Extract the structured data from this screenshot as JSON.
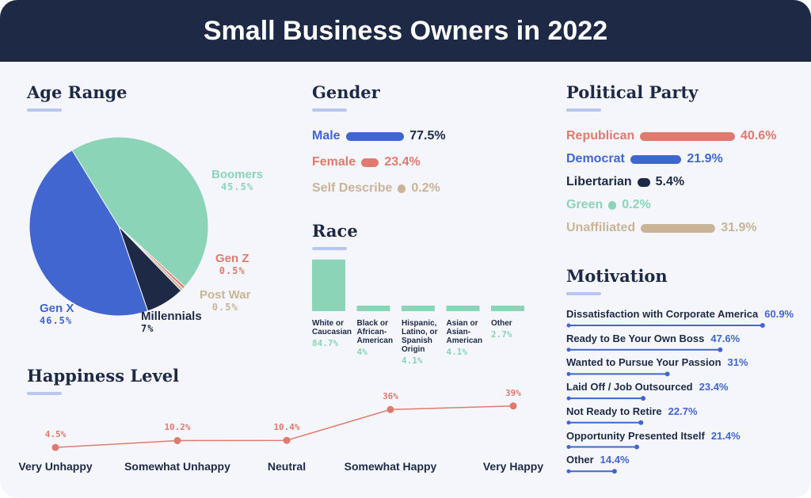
{
  "title": "Small Business Owners in 2022",
  "colors": {
    "navy": "#1e2a45",
    "blue": "#4266d0",
    "red": "#e07a6e",
    "green": "#8bd4b8",
    "tan": "#c9b498"
  },
  "chart_data": [
    {
      "type": "pie",
      "title": "Age Range",
      "slices": [
        {
          "label": "Boomers",
          "value": 45.5,
          "display": "45.5%",
          "color": "#8bd4b8"
        },
        {
          "label": "Gen Z",
          "value": 0.5,
          "display": "0.5%",
          "color": "#e07a6e"
        },
        {
          "label": "Post War",
          "value": 0.5,
          "display": "0.5%",
          "color": "#c9b498"
        },
        {
          "label": "Millennials",
          "value": 7,
          "display": "7%",
          "color": "#1e2a45"
        },
        {
          "label": "Gen X",
          "value": 46.5,
          "display": "46.5%",
          "color": "#4266d0"
        }
      ]
    },
    {
      "type": "bar",
      "title": "Gender",
      "orientation": "horizontal",
      "items": [
        {
          "label": "Male",
          "value": 77.5,
          "display": "77.5%",
          "color": "#4266d0"
        },
        {
          "label": "Female",
          "value": 23.4,
          "display": "23.4%",
          "color": "#e07a6e"
        },
        {
          "label": "Self Describe",
          "value": 0.2,
          "display": "0.2%",
          "color": "#c9b498"
        }
      ]
    },
    {
      "type": "bar",
      "title": "Race",
      "items": [
        {
          "label": "White or Caucasian",
          "value": 84.7,
          "display": "84.7%"
        },
        {
          "label": "Black or African-American",
          "value": 4,
          "display": "4%"
        },
        {
          "label": "Hispanic, Latino, or Spanish Origin",
          "value": 4.1,
          "display": "4.1%"
        },
        {
          "label": "Asian or Asian-American",
          "value": 4.1,
          "display": "4.1%"
        },
        {
          "label": "Other",
          "value": 2.7,
          "display": "2.7%"
        }
      ]
    },
    {
      "type": "bar",
      "title": "Political Party",
      "orientation": "horizontal",
      "items": [
        {
          "label": "Republican",
          "value": 40.6,
          "display": "40.6%",
          "color": "#e07a6e"
        },
        {
          "label": "Democrat",
          "value": 21.9,
          "display": "21.9%",
          "color": "#4266d0"
        },
        {
          "label": "Libertarian",
          "value": 5.4,
          "display": "5.4%",
          "color": "#1e2a45"
        },
        {
          "label": "Green",
          "value": 0.2,
          "display": "0.2%",
          "color": "#8bd4b8"
        },
        {
          "label": "Unaffiliated",
          "value": 31.9,
          "display": "31.9%",
          "color": "#c9b498"
        }
      ]
    },
    {
      "type": "bar",
      "title": "Motivation",
      "orientation": "horizontal",
      "items": [
        {
          "label": "Dissatisfaction with Corporate America",
          "value": 60.9,
          "display": "60.9%"
        },
        {
          "label": "Ready to Be Your Own Boss",
          "value": 47.6,
          "display": "47.6%"
        },
        {
          "label": "Wanted to Pursue Your Passion",
          "value": 31,
          "display": "31%"
        },
        {
          "label": "Laid Off / Job Outsourced",
          "value": 23.4,
          "display": "23.4%"
        },
        {
          "label": "Not Ready to Retire",
          "value": 22.7,
          "display": "22.7%"
        },
        {
          "label": "Opportunity Presented Itself",
          "value": 21.4,
          "display": "21.4%"
        },
        {
          "label": "Other",
          "value": 14.4,
          "display": "14.4%"
        }
      ]
    },
    {
      "type": "line",
      "title": "Happiness Level",
      "categories": [
        "Very Unhappy",
        "Somewhat Unhappy",
        "Neutral",
        "Somewhat Happy",
        "Very Happy"
      ],
      "values": [
        4.5,
        10.2,
        10.4,
        36,
        39
      ],
      "labels": [
        "4.5%",
        "10.2%",
        "10.4%",
        "36%",
        "39%"
      ]
    }
  ]
}
